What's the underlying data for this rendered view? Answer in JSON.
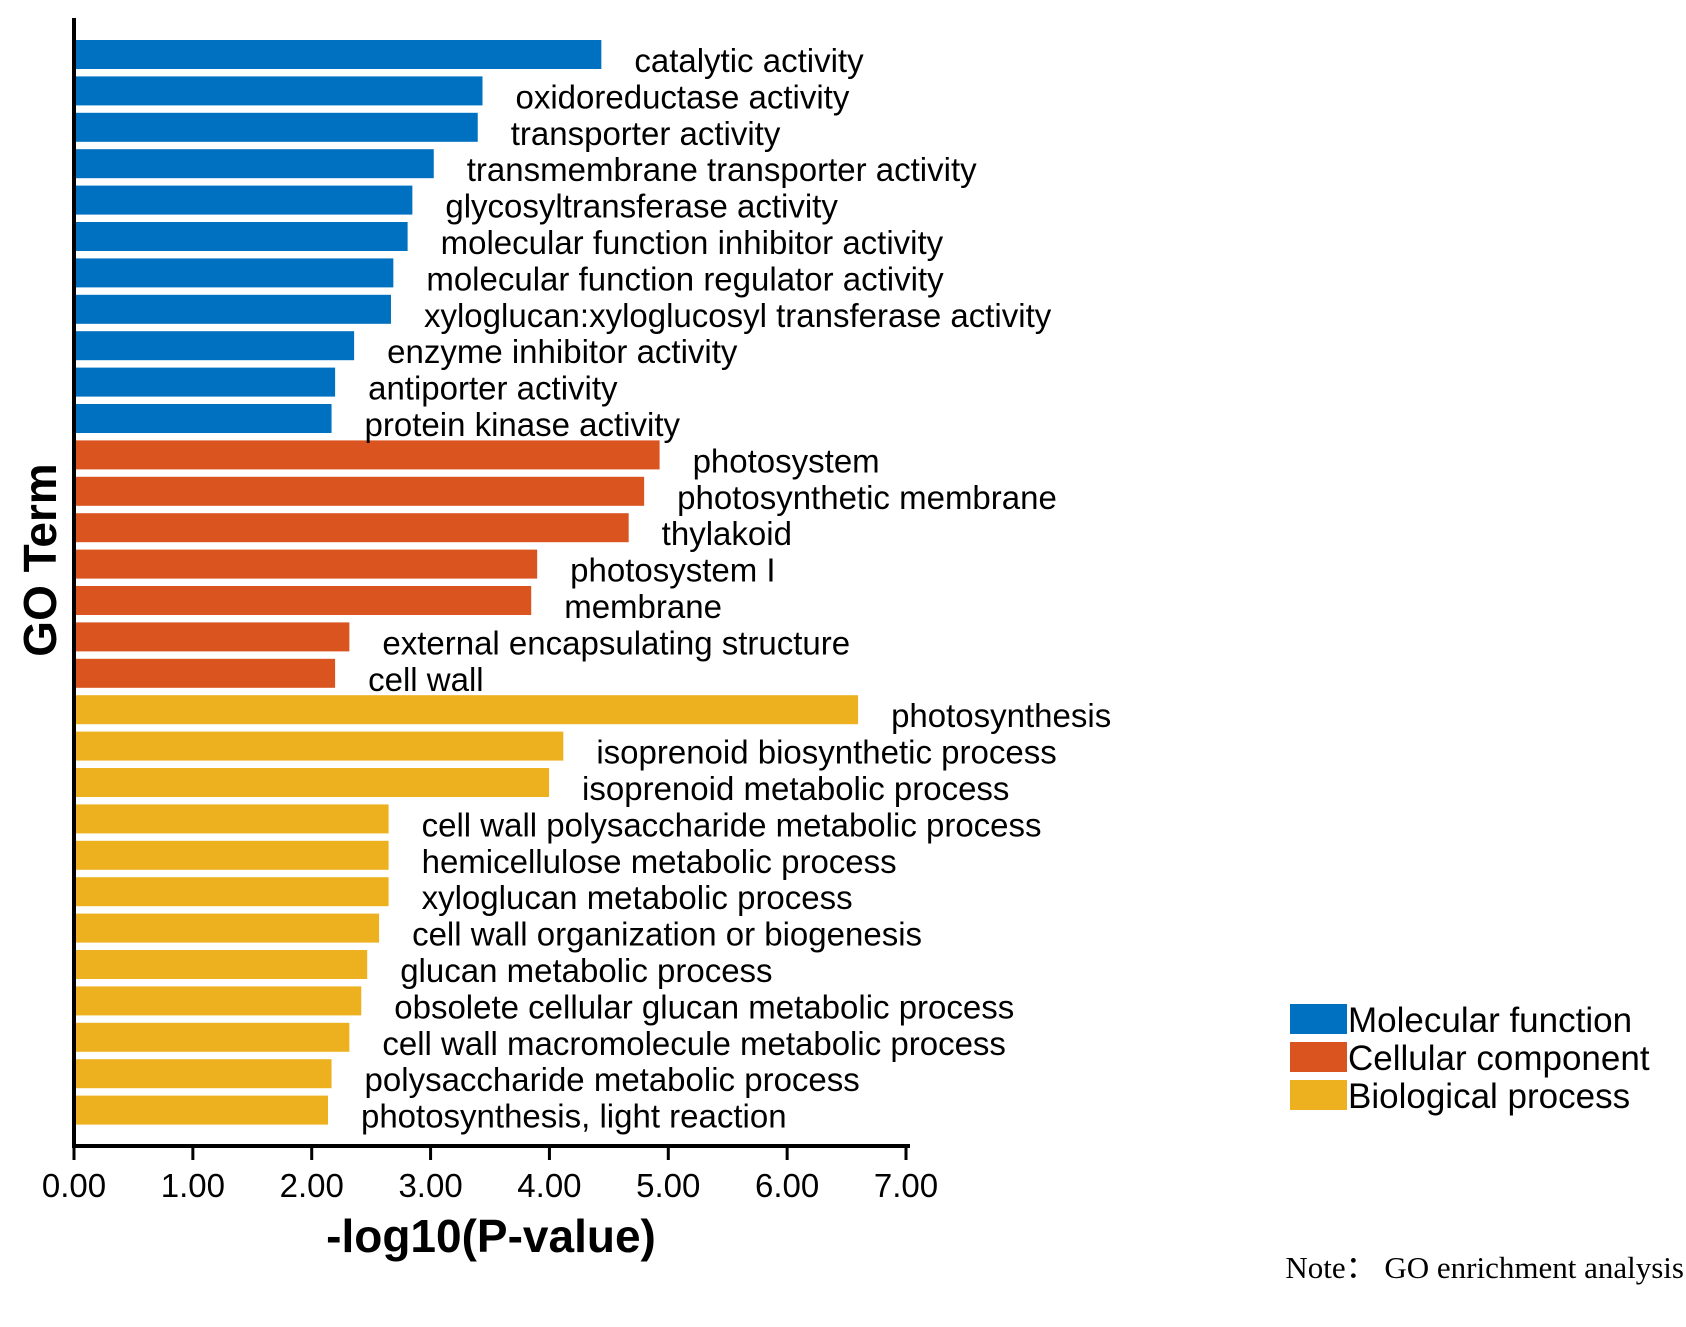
{
  "chart_data": {
    "type": "bar",
    "orientation": "horizontal",
    "xlabel": "-log10(P-value)",
    "ylabel": "GO Term",
    "xlim": [
      0,
      7
    ],
    "xticks": [
      "0.00",
      "1.00",
      "2.00",
      "3.00",
      "4.00",
      "5.00",
      "6.00",
      "7.00"
    ],
    "grid": false,
    "legend_position": "bottom-right",
    "categories_legend": [
      {
        "name": "Molecular function",
        "color": "#0070C0"
      },
      {
        "name": "Cellular component",
        "color": "#D9541E"
      },
      {
        "name": "Biological process",
        "color": "#EDB120"
      }
    ],
    "bars": [
      {
        "label": "catalytic activity",
        "value": 4.42,
        "group": 0
      },
      {
        "label": "oxidoreductase activity",
        "value": 3.42,
        "group": 0
      },
      {
        "label": "transporter activity",
        "value": 3.38,
        "group": 0
      },
      {
        "label": "transmembrane transporter activity",
        "value": 3.01,
        "group": 0
      },
      {
        "label": "glycosyltransferase activity",
        "value": 2.83,
        "group": 0
      },
      {
        "label": "molecular function inhibitor activity",
        "value": 2.79,
        "group": 0
      },
      {
        "label": "molecular function regulator activity",
        "value": 2.67,
        "group": 0
      },
      {
        "label": "xyloglucan:xyloglucosyl transferase activity",
        "value": 2.65,
        "group": 0
      },
      {
        "label": "enzyme inhibitor activity",
        "value": 2.34,
        "group": 0
      },
      {
        "label": "antiporter activity",
        "value": 2.18,
        "group": 0
      },
      {
        "label": "protein kinase activity",
        "value": 2.15,
        "group": 0
      },
      {
        "label": "photosystem",
        "value": 4.91,
        "group": 1
      },
      {
        "label": "photosynthetic membrane",
        "value": 4.78,
        "group": 1
      },
      {
        "label": "thylakoid",
        "value": 4.65,
        "group": 1
      },
      {
        "label": "photosystem I",
        "value": 3.88,
        "group": 1
      },
      {
        "label": "membrane",
        "value": 3.83,
        "group": 1
      },
      {
        "label": "external encapsulating structure",
        "value": 2.3,
        "group": 1
      },
      {
        "label": "cell wall",
        "value": 2.18,
        "group": 1
      },
      {
        "label": "photosynthesis",
        "value": 6.58,
        "group": 2
      },
      {
        "label": "isoprenoid biosynthetic process",
        "value": 4.1,
        "group": 2
      },
      {
        "label": "isoprenoid metabolic process",
        "value": 3.98,
        "group": 2
      },
      {
        "label": "cell wall polysaccharide metabolic process",
        "value": 2.63,
        "group": 2
      },
      {
        "label": "hemicellulose metabolic process",
        "value": 2.63,
        "group": 2
      },
      {
        "label": "xyloglucan metabolic process",
        "value": 2.63,
        "group": 2
      },
      {
        "label": "cell wall organization or biogenesis",
        "value": 2.55,
        "group": 2
      },
      {
        "label": "glucan metabolic process",
        "value": 2.45,
        "group": 2
      },
      {
        "label": "obsolete cellular glucan metabolic process",
        "value": 2.4,
        "group": 2
      },
      {
        "label": "cell wall macromolecule metabolic process",
        "value": 2.3,
        "group": 2
      },
      {
        "label": "polysaccharide metabolic process",
        "value": 2.15,
        "group": 2
      },
      {
        "label": "photosynthesis, light reaction",
        "value": 2.12,
        "group": 2
      }
    ]
  },
  "note": "Note： GO enrichment analysis"
}
